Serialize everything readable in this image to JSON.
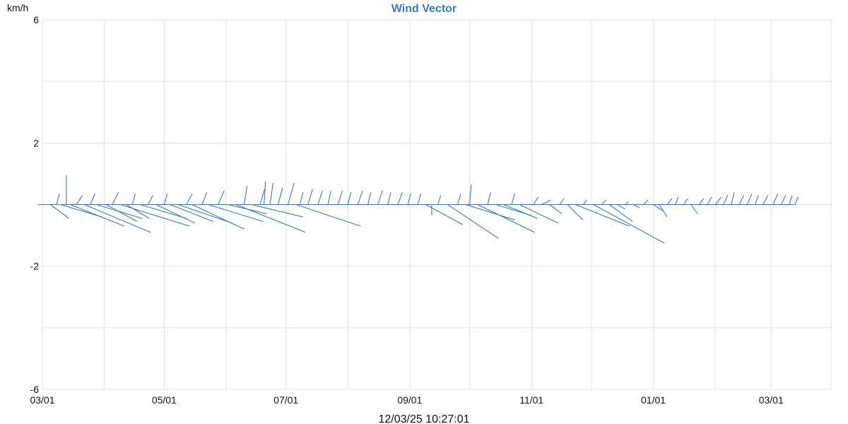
{
  "chart_data": {
    "type": "line",
    "title": "Wind Vector",
    "ylabel": "km/h",
    "xlabel": "",
    "ylim": [
      -6,
      6
    ],
    "y_ticks": [
      -6,
      -2,
      2,
      6
    ],
    "x_range": [
      "2025-03-01",
      "2026-03-31"
    ],
    "x_ticks": [
      {
        "date": "2025-03-01",
        "label": "03/01"
      },
      {
        "date": "2025-05-01",
        "label": "05/01"
      },
      {
        "date": "2025-07-01",
        "label": "07/01"
      },
      {
        "date": "2025-09-01",
        "label": "09/01"
      },
      {
        "date": "2025-11-01",
        "label": "11/01"
      },
      {
        "date": "2026-01-01",
        "label": "01/01"
      },
      {
        "date": "2026-03-01",
        "label": "03/01"
      }
    ],
    "grid": true,
    "color": "#3a7ab5",
    "vectors": [
      {
        "date": "2025-03-02",
        "u": 1.8,
        "v": 0.0
      },
      {
        "date": "2025-03-05",
        "u": 1.2,
        "v": -0.9
      },
      {
        "date": "2025-03-08",
        "u": 0.2,
        "v": 0.7
      },
      {
        "date": "2025-03-10",
        "u": 2.7,
        "v": -0.8
      },
      {
        "date": "2025-03-13",
        "u": 0.0,
        "v": 1.9
      },
      {
        "date": "2025-03-15",
        "u": 3.5,
        "v": -1.4
      },
      {
        "date": "2025-03-18",
        "u": 0.4,
        "v": 0.6
      },
      {
        "date": "2025-03-22",
        "u": 4.3,
        "v": -1.8
      },
      {
        "date": "2025-03-25",
        "u": 0.3,
        "v": 0.7
      },
      {
        "date": "2025-03-28",
        "u": 3.0,
        "v": -0.9
      },
      {
        "date": "2025-04-02",
        "u": 2.0,
        "v": -1.1
      },
      {
        "date": "2025-04-05",
        "u": 0.4,
        "v": 0.8
      },
      {
        "date": "2025-04-09",
        "u": 4.5,
        "v": -1.4
      },
      {
        "date": "2025-04-12",
        "u": 1.5,
        "v": -0.9
      },
      {
        "date": "2025-04-15",
        "u": 0.2,
        "v": 0.7
      },
      {
        "date": "2025-04-19",
        "u": 3.0,
        "v": -0.9
      },
      {
        "date": "2025-04-23",
        "u": 0.3,
        "v": 0.6
      },
      {
        "date": "2025-04-27",
        "u": 2.5,
        "v": -1.2
      },
      {
        "date": "2025-05-01",
        "u": 0.2,
        "v": 0.7
      },
      {
        "date": "2025-05-04",
        "u": 2.8,
        "v": -1.1
      },
      {
        "date": "2025-05-08",
        "u": 3.5,
        "v": -1.2
      },
      {
        "date": "2025-05-12",
        "u": 0.4,
        "v": 0.7
      },
      {
        "date": "2025-05-15",
        "u": 3.4,
        "v": -1.6
      },
      {
        "date": "2025-05-20",
        "u": 0.3,
        "v": 0.8
      },
      {
        "date": "2025-05-23",
        "u": 3.6,
        "v": -1.1
      },
      {
        "date": "2025-05-28",
        "u": 0.4,
        "v": 0.9
      },
      {
        "date": "2025-06-02",
        "u": 2.5,
        "v": -0.6
      },
      {
        "date": "2025-06-06",
        "u": 4.5,
        "v": -1.8
      },
      {
        "date": "2025-06-10",
        "u": 0.2,
        "v": 1.2
      },
      {
        "date": "2025-06-14",
        "u": 3.3,
        "v": -0.8
      },
      {
        "date": "2025-06-18",
        "u": 0.3,
        "v": 1.0
      },
      {
        "date": "2025-06-20",
        "u": 0.1,
        "v": 1.5
      },
      {
        "date": "2025-06-23",
        "u": 0.2,
        "v": 1.4
      },
      {
        "date": "2025-06-27",
        "u": 0.3,
        "v": 1.1
      },
      {
        "date": "2025-07-02",
        "u": 0.4,
        "v": 1.4
      },
      {
        "date": "2025-07-06",
        "u": 4.2,
        "v": -1.4
      },
      {
        "date": "2025-07-08",
        "u": 0.2,
        "v": 0.8
      },
      {
        "date": "2025-07-12",
        "u": 0.3,
        "v": 1.0
      },
      {
        "date": "2025-07-17",
        "u": 0.3,
        "v": 0.9
      },
      {
        "date": "2025-07-22",
        "u": 0.2,
        "v": 0.9
      },
      {
        "date": "2025-07-27",
        "u": 0.3,
        "v": 0.9
      },
      {
        "date": "2025-08-01",
        "u": 0.2,
        "v": 0.8
      },
      {
        "date": "2025-08-06",
        "u": 0.3,
        "v": 0.9
      },
      {
        "date": "2025-08-11",
        "u": 0.2,
        "v": 0.8
      },
      {
        "date": "2025-08-16",
        "u": 0.3,
        "v": 0.9
      },
      {
        "date": "2025-08-21",
        "u": 0.2,
        "v": 0.8
      },
      {
        "date": "2025-08-26",
        "u": 0.3,
        "v": 0.8
      },
      {
        "date": "2025-08-31",
        "u": 0.2,
        "v": 0.7
      },
      {
        "date": "2025-09-05",
        "u": 0.2,
        "v": 0.7
      },
      {
        "date": "2025-09-09",
        "u": 2.4,
        "v": -1.3
      },
      {
        "date": "2025-09-12",
        "u": 0.0,
        "v": -0.7
      },
      {
        "date": "2025-09-15",
        "u": 0.2,
        "v": 0.6
      },
      {
        "date": "2025-09-20",
        "u": 3.3,
        "v": -2.2
      },
      {
        "date": "2025-09-25",
        "u": 0.2,
        "v": 0.7
      },
      {
        "date": "2025-09-29",
        "u": 3.2,
        "v": -1.0
      },
      {
        "date": "2025-10-01",
        "u": 0.1,
        "v": 1.3
      },
      {
        "date": "2025-10-05",
        "u": 3.7,
        "v": -1.8
      },
      {
        "date": "2025-10-10",
        "u": 0.2,
        "v": 0.8
      },
      {
        "date": "2025-10-14",
        "u": 2.3,
        "v": -0.7
      },
      {
        "date": "2025-10-18",
        "u": 2.2,
        "v": -0.9
      },
      {
        "date": "2025-10-22",
        "u": 0.2,
        "v": 0.7
      },
      {
        "date": "2025-10-26",
        "u": 2.5,
        "v": -1.2
      },
      {
        "date": "2025-11-02",
        "u": 0.3,
        "v": 0.5
      },
      {
        "date": "2025-11-06",
        "u": 0.6,
        "v": 0.3
      },
      {
        "date": "2025-11-10",
        "u": 0.8,
        "v": -0.6
      },
      {
        "date": "2025-11-15",
        "u": 0.3,
        "v": 0.4
      },
      {
        "date": "2025-11-19",
        "u": 1.0,
        "v": -1.0
      },
      {
        "date": "2025-11-23",
        "u": 3.5,
        "v": -1.4
      },
      {
        "date": "2025-11-27",
        "u": 0.2,
        "v": 0.3
      },
      {
        "date": "2025-12-02",
        "u": 4.6,
        "v": -2.5
      },
      {
        "date": "2025-12-06",
        "u": 0.3,
        "v": 0.3
      },
      {
        "date": "2025-12-10",
        "u": 1.5,
        "v": -1.1
      },
      {
        "date": "2025-12-14",
        "u": 0.5,
        "v": -0.3
      },
      {
        "date": "2025-12-18",
        "u": 0.2,
        "v": 0.2
      },
      {
        "date": "2025-12-22",
        "u": 0.4,
        "v": -0.2
      },
      {
        "date": "2025-12-27",
        "u": 0.3,
        "v": 0.3
      },
      {
        "date": "2026-01-01",
        "u": 0.6,
        "v": -0.4
      },
      {
        "date": "2026-01-04",
        "u": 0.5,
        "v": -0.8
      },
      {
        "date": "2026-01-08",
        "u": 0.3,
        "v": 0.4
      },
      {
        "date": "2026-01-12",
        "u": 0.2,
        "v": 0.5
      },
      {
        "date": "2026-01-16",
        "u": 0.3,
        "v": 0.4
      },
      {
        "date": "2026-01-20",
        "u": 0.4,
        "v": -0.6
      },
      {
        "date": "2026-01-24",
        "u": 0.3,
        "v": 0.4
      },
      {
        "date": "2026-01-28",
        "u": 0.3,
        "v": 0.5
      },
      {
        "date": "2026-02-01",
        "u": 0.4,
        "v": 0.5
      },
      {
        "date": "2026-02-05",
        "u": 0.3,
        "v": 0.6
      },
      {
        "date": "2026-02-09",
        "u": 0.2,
        "v": 0.8
      },
      {
        "date": "2026-02-13",
        "u": 0.3,
        "v": 0.6
      },
      {
        "date": "2026-02-17",
        "u": 0.3,
        "v": 0.7
      },
      {
        "date": "2026-02-21",
        "u": 0.2,
        "v": 0.6
      },
      {
        "date": "2026-02-25",
        "u": 0.3,
        "v": 0.6
      },
      {
        "date": "2026-03-02",
        "u": 0.3,
        "v": 0.7
      },
      {
        "date": "2026-03-06",
        "u": 0.3,
        "v": 0.6
      },
      {
        "date": "2026-03-10",
        "u": 0.2,
        "v": 0.6
      },
      {
        "date": "2026-03-13",
        "u": 0.2,
        "v": 0.5
      }
    ]
  },
  "footer": {
    "timestamp": "12/03/25 10:27:01"
  }
}
